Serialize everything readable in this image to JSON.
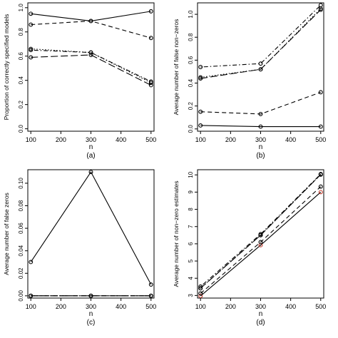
{
  "chart_data": [
    {
      "type": "line",
      "caption": "(a)",
      "title": "",
      "xlabel": "n",
      "ylabel": "Proportion of correctly specified models",
      "x": [
        100,
        300,
        500
      ],
      "xticks": [
        100,
        200,
        300,
        400,
        500
      ],
      "yticks": [
        0.0,
        0.2,
        0.4,
        0.6,
        0.8,
        1.0
      ],
      "ytick_labels": [
        "0.0",
        "0.2",
        "0.4",
        "0.6",
        "0.8",
        "1.0"
      ],
      "xlim": [
        90,
        510
      ],
      "ylim": [
        -0.02,
        1.04
      ],
      "grid": false,
      "series": [
        {
          "values": [
            0.95,
            0.89,
            0.97
          ],
          "line": "solid",
          "color": "#000000"
        },
        {
          "values": [
            0.86,
            0.89,
            0.75
          ],
          "line": "dashed",
          "color": "#000000"
        },
        {
          "values": [
            0.66,
            0.63,
            0.38
          ],
          "line": "dotted",
          "color": "#000000"
        },
        {
          "values": [
            0.65,
            0.63,
            0.39
          ],
          "line": "dotdash",
          "color": "#000000"
        },
        {
          "values": [
            0.59,
            0.61,
            0.36
          ],
          "line": "longdash",
          "color": "#000000"
        }
      ]
    },
    {
      "type": "line",
      "caption": "(b)",
      "title": "",
      "xlabel": "n",
      "ylabel": "Average number of false non−zeros",
      "x": [
        100,
        300,
        500
      ],
      "xticks": [
        100,
        200,
        300,
        400,
        500
      ],
      "yticks": [
        0.0,
        0.2,
        0.4,
        0.6,
        0.8,
        1.0
      ],
      "ytick_labels": [
        "0.0",
        "0.2",
        "0.4",
        "0.6",
        "0.8",
        "1.0"
      ],
      "xlim": [
        90,
        510
      ],
      "ylim": [
        -0.02,
        1.1
      ],
      "grid": false,
      "series": [
        {
          "values": [
            0.03,
            0.02,
            0.02
          ],
          "line": "solid",
          "color": "#000000"
        },
        {
          "values": [
            0.15,
            0.13,
            0.32
          ],
          "line": "dashed",
          "color": "#000000"
        },
        {
          "values": [
            0.45,
            0.52,
            1.05
          ],
          "line": "dotted",
          "color": "#000000"
        },
        {
          "values": [
            0.54,
            0.57,
            1.08
          ],
          "line": "dotdash",
          "color": "#000000"
        },
        {
          "values": [
            0.44,
            0.52,
            1.04
          ],
          "line": "longdash",
          "color": "#000000"
        }
      ]
    },
    {
      "type": "line",
      "caption": "(c)",
      "title": "",
      "xlabel": "n",
      "ylabel": "Average number of false zeros",
      "x": [
        100,
        300,
        500
      ],
      "xticks": [
        100,
        200,
        300,
        400,
        500
      ],
      "yticks": [
        0.0,
        0.02,
        0.04,
        0.06,
        0.08,
        0.1
      ],
      "ytick_labels": [
        "0.00",
        "0.02",
        "0.04",
        "0.06",
        "0.08",
        "0.10"
      ],
      "xlim": [
        90,
        510
      ],
      "ylim": [
        -0.002,
        0.112
      ],
      "grid": false,
      "series": [
        {
          "values": [
            0.03,
            0.11,
            0.01
          ],
          "line": "solid",
          "color": "#000000"
        },
        {
          "values": [
            0.0,
            0.0,
            0.0
          ],
          "line": "dashed",
          "color": "#000000"
        },
        {
          "values": [
            0.0,
            0.0,
            0.0
          ],
          "line": "dotted",
          "color": "#000000"
        },
        {
          "values": [
            0.0,
            0.0,
            0.0
          ],
          "line": "dotdash",
          "color": "#000000"
        },
        {
          "values": [
            0.0,
            0.0,
            0.0
          ],
          "line": "longdash",
          "color": "#000000"
        }
      ]
    },
    {
      "type": "line",
      "caption": "(d)",
      "title": "",
      "xlabel": "n",
      "ylabel": "Average number of non−zero estimates",
      "x": [
        100,
        300,
        500
      ],
      "xticks": [
        100,
        200,
        300,
        400,
        500
      ],
      "yticks": [
        3,
        4,
        5,
        6,
        7,
        8,
        9,
        10
      ],
      "ytick_labels": [
        "3",
        "4",
        "5",
        "6",
        "7",
        "8",
        "9",
        "10"
      ],
      "xlim": [
        90,
        510
      ],
      "ylim": [
        2.85,
        10.3
      ],
      "grid": false,
      "series": [
        {
          "values": [
            2.97,
            5.92,
            9.0
          ],
          "line": "solid",
          "color": "#000000",
          "marker_color": "#c0392b"
        },
        {
          "values": [
            3.12,
            6.1,
            9.32
          ],
          "line": "dashed",
          "color": "#000000"
        },
        {
          "values": [
            3.42,
            6.5,
            10.02
          ],
          "line": "dotted",
          "color": "#000000"
        },
        {
          "values": [
            3.52,
            6.56,
            10.05
          ],
          "line": "dotdash",
          "color": "#000000"
        },
        {
          "values": [
            3.42,
            6.5,
            10.02
          ],
          "line": "longdash",
          "color": "#000000"
        }
      ]
    }
  ]
}
